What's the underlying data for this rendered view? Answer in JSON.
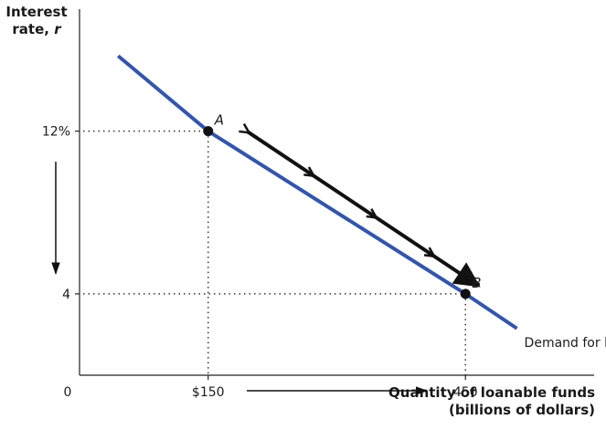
{
  "chart_data": {
    "type": "line",
    "title": "",
    "ylabel": {
      "line1": "Interest",
      "line2": "rate, ",
      "var": "r"
    },
    "xlabel": {
      "line1": "Quantity of loanable funds",
      "line2": "(billions of dollars)"
    },
    "x_range": [
      0,
      600
    ],
    "y_range": [
      0,
      18
    ],
    "origin_label": "0",
    "x_ticks": [
      {
        "value": 150,
        "label": "$150"
      },
      {
        "value": 450,
        "label": "450"
      }
    ],
    "y_ticks": [
      {
        "value": 12,
        "label": "12%"
      },
      {
        "value": 4,
        "label": "4"
      }
    ],
    "series": [
      {
        "name": "Demand for loanable funds, D",
        "label_text": "Demand for loanable funds, ",
        "label_var": "D",
        "color": "#3355aa",
        "x": [
          45,
          150,
          450,
          510
        ],
        "y": [
          15.7,
          12,
          4,
          2.3
        ]
      }
    ],
    "points": [
      {
        "label": "A",
        "x": 150,
        "y": 12
      },
      {
        "label": "B",
        "x": 450,
        "y": 4
      }
    ],
    "movement_arrow": {
      "from": [
        195,
        12
      ],
      "to": [
        465,
        4.4
      ],
      "color": "#111111"
    },
    "y_axis_arrow": {
      "from": 10.5,
      "to": 5
    },
    "x_axis_arrow": {
      "from": 195,
      "to": 405
    },
    "grid": false
  }
}
